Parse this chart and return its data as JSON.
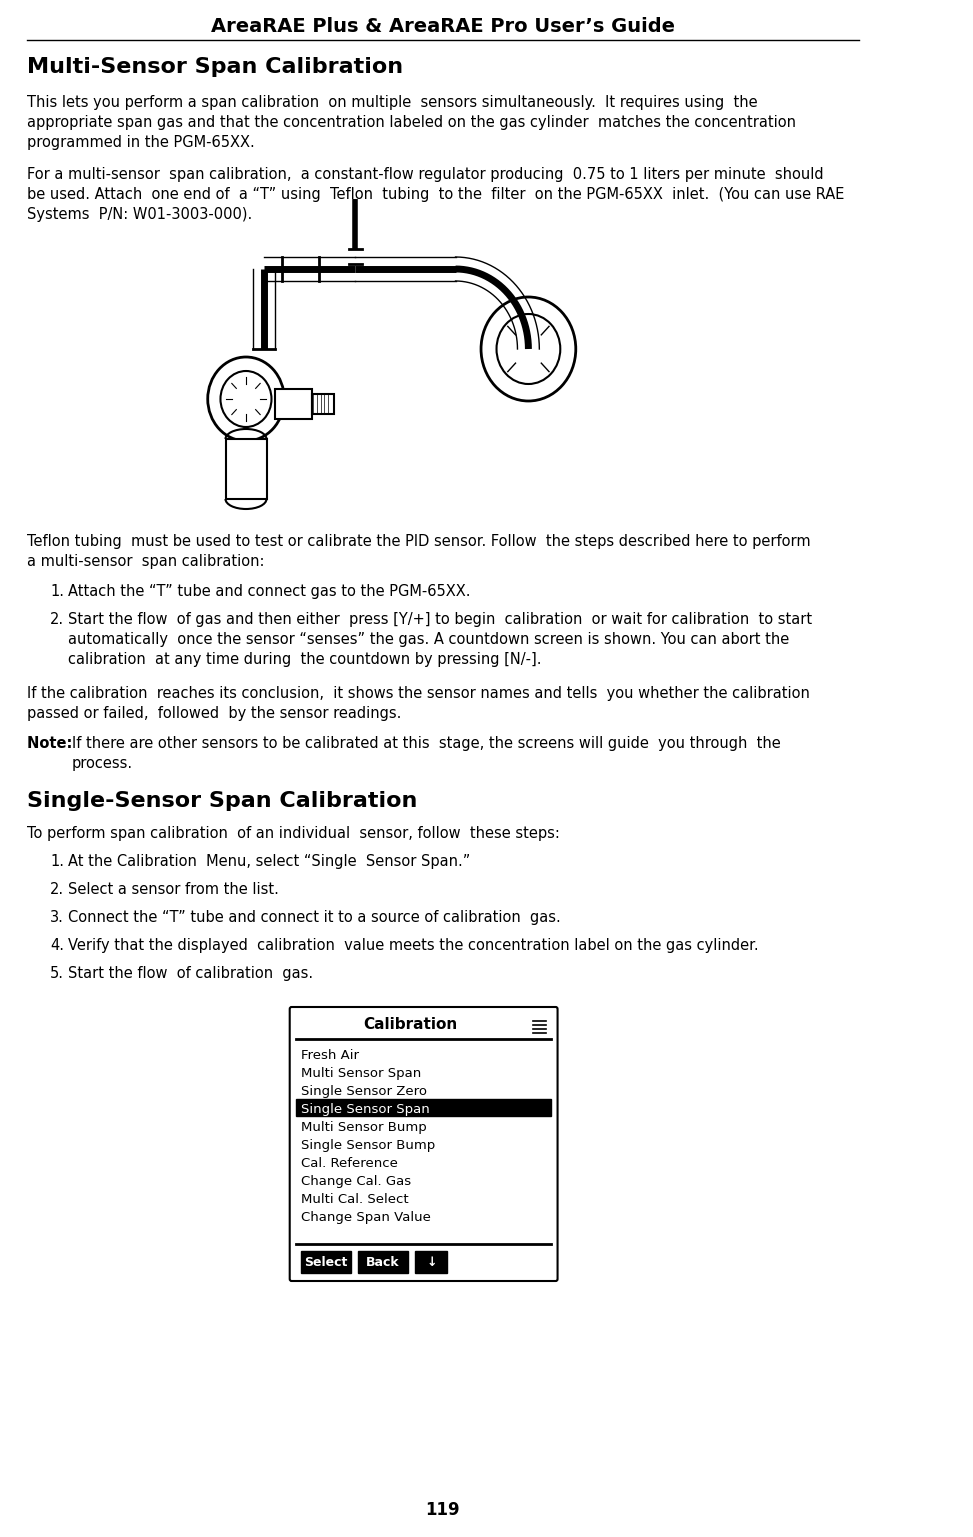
{
  "title": "AreaRAE Plus & AreaRAE Pro User’s Guide",
  "page_number": "119",
  "background_color": "#ffffff",
  "text_color": "#000000",
  "section1_heading": "Multi-Sensor Span Calibration",
  "section1_para1": "This lets you perform a span calibration  on multiple  sensors simultaneously.  It requires using  the\nappropriate span gas and that the concentration labeled on the gas cylinder  matches the concentration\nprogrammed in the PGM-65XX.",
  "section1_para2": "For a multi-sensor  span calibration,  a constant-flow regulator producing  0.75 to 1 liters per minute  should\nbe used. Attach  one end of  a “T” using  Teflon  tubing  to the  filter  on the PGM-65XX  inlet.  (You can use RAE\nSystems  P/N: W01-3003-000).",
  "note_teflon": "Teflon tubing  must be used to test or calibrate the PID sensor. Follow  the steps described here to perform\na multi-sensor  span calibration:",
  "list1": [
    "Attach the “T” tube and connect gas to the PGM-65XX.",
    "Start the flow  of gas and then either  press [Y/+] to begin  calibration  or wait for calibration  to start\nautomatically  once the sensor “senses” the gas. A countdown screen is shown. You can abort the\ncalibration  at any time during  the countdown by pressing [N/-]."
  ],
  "section1_para3": "If the calibration  reaches its conclusion,  it shows the sensor names and tells  you whether the calibration\npassed or failed,  followed  by the sensor readings.",
  "note_para": "Note:  If there are other sensors to be calibrated at this  stage, the screens will guide  you through  the\nprocess.",
  "section2_heading": "Single-Sensor Span Calibration",
  "section2_intro": "To perform span calibration  of an individual  sensor, follow  these steps:",
  "list2": [
    "At the Calibration  Menu, select “Single  Sensor Span.”",
    "Select a sensor from the list.",
    "Connect the “T” tube and connect it to a source of calibration  gas.",
    "Verify that the displayed  calibration  value meets the concentration label on the gas cylinder.",
    "Start the flow  of calibration  gas."
  ],
  "menu_title": "Calibration",
  "menu_items": [
    "Fresh Air",
    "Multi Sensor Span",
    "Single Sensor Zero",
    "Single Sensor Span",
    "Multi Sensor Bump",
    "Single Sensor Bump",
    "Cal. Reference",
    "Change Cal. Gas",
    "Multi Cal. Select",
    "Change Span Value"
  ],
  "menu_selected": "Single Sensor Span",
  "menu_buttons": [
    "Select",
    "Back",
    "↓"
  ]
}
